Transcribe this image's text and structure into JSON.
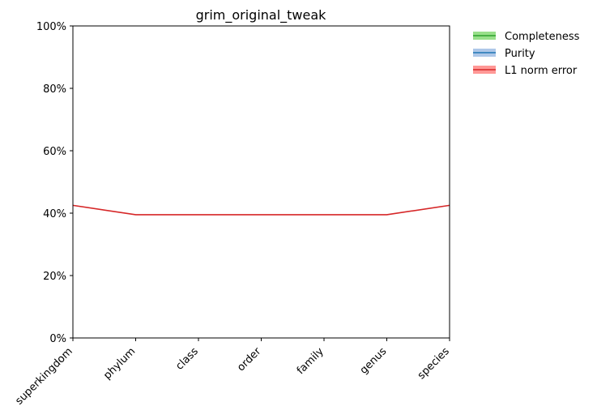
{
  "chart_data": {
    "type": "line",
    "title": "grim_original_tweak",
    "xlabel": "",
    "ylabel": "",
    "categories": [
      "superkingdom",
      "phylum",
      "class",
      "order",
      "family",
      "genus",
      "species"
    ],
    "ylim": [
      0,
      1
    ],
    "yticks": [
      0,
      0.2,
      0.4,
      0.6,
      0.8,
      1.0
    ],
    "ytick_labels": [
      "0%",
      "20%",
      "40%",
      "60%",
      "80%",
      "100%"
    ],
    "grid": false,
    "legend_position": "outside-top-right",
    "series": [
      {
        "name": "Completeness",
        "color": "#2ca02c",
        "band_color": "#98df8a",
        "values": [
          null,
          null,
          null,
          null,
          null,
          null,
          null
        ]
      },
      {
        "name": "Purity",
        "color": "#1f77b4",
        "band_color": "#aec7e8",
        "values": [
          null,
          null,
          null,
          null,
          null,
          null,
          null
        ]
      },
      {
        "name": "L1 norm error",
        "color": "#d62728",
        "band_color": "#ff9896",
        "values": [
          0.425,
          0.395,
          0.395,
          0.395,
          0.395,
          0.395,
          0.425
        ]
      }
    ]
  }
}
